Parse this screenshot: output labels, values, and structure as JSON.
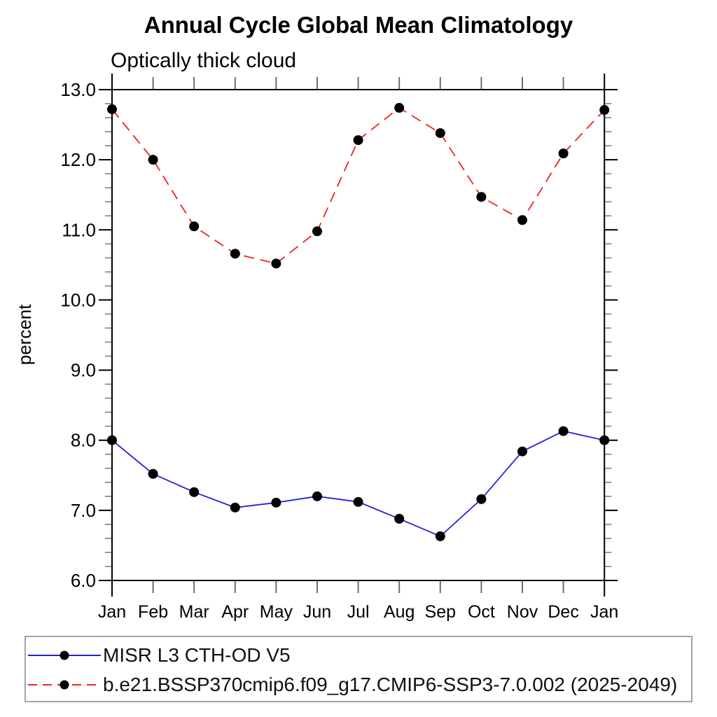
{
  "title": "Annual Cycle Global Mean Climatology",
  "subtitle": "Optically thick cloud",
  "ylabel": "percent",
  "chart_data": {
    "type": "line",
    "title": "Annual Cycle Global Mean Climatology",
    "subtitle": "Optically thick cloud",
    "xlabel": "",
    "ylabel": "percent",
    "categories": [
      "Jan",
      "Feb",
      "Mar",
      "Apr",
      "May",
      "Jun",
      "Jul",
      "Aug",
      "Sep",
      "Oct",
      "Nov",
      "Dec",
      "Jan"
    ],
    "series": [
      {
        "name": "MISR L3 CTH-OD V5",
        "color": "#2323d6",
        "line_style": "solid",
        "marker": "filled-circle",
        "marker_color": "#000000",
        "values": [
          8.0,
          7.52,
          7.26,
          7.04,
          7.11,
          7.2,
          7.12,
          6.88,
          6.63,
          7.16,
          7.84,
          8.13,
          8.0
        ]
      },
      {
        "name": "b.e21.BSSP370cmip6.f09_g17.CMIP6-SSP3-7.0.002 (2025-2049)",
        "color": "#ee2222",
        "line_style": "dashed",
        "marker": "filled-circle",
        "marker_color": "#000000",
        "values": [
          12.72,
          12.0,
          11.05,
          10.66,
          10.52,
          10.98,
          12.28,
          12.74,
          12.38,
          11.47,
          11.14,
          12.09,
          12.71
        ]
      }
    ],
    "ylim": [
      6.0,
      13.0
    ],
    "ytick_step": 1.0,
    "yminor_step": 0.2,
    "ytick_labels": [
      "6.0",
      "7.0",
      "8.0",
      "9.0",
      "10.0",
      "11.0",
      "12.0",
      "13.0"
    ],
    "grid": false,
    "legend_position": "bottom-left-box",
    "axis_color": "#000000",
    "minor_tick_color": "#808080"
  }
}
